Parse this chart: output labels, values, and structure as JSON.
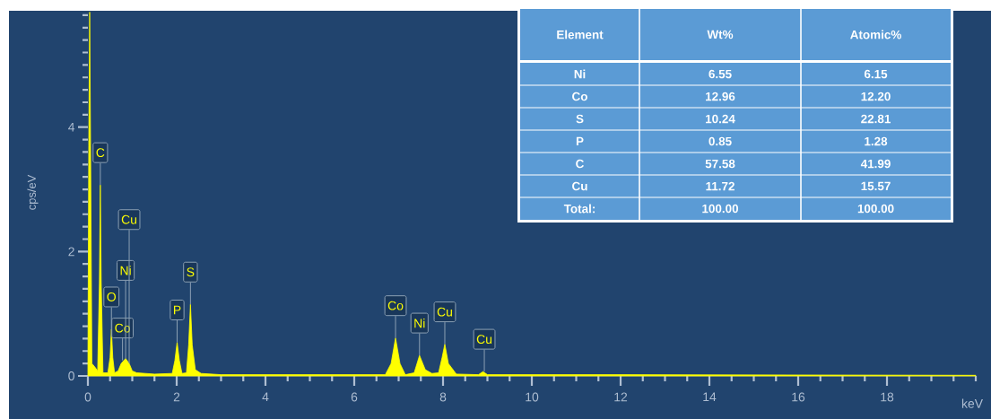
{
  "chart_data": [
    {
      "type": "area",
      "xlabel": "keV",
      "ylabel": "cps/eV",
      "xlim": [
        0,
        20
      ],
      "ylim": [
        0,
        5.9
      ],
      "xticks": [
        0,
        {
          "value": 0.5,
          "label": null
        },
        {
          "value": 1,
          "label": null
        },
        {
          "value": 1.5,
          "label": null
        },
        2,
        {
          "value": 2.5,
          "label": null
        },
        {
          "value": 3,
          "label": null
        },
        {
          "value": 3.5,
          "label": null
        },
        4,
        {
          "value": 4.5,
          "label": null
        },
        {
          "value": 5,
          "label": null
        },
        {
          "value": 5.5,
          "label": null
        },
        6,
        {
          "value": 6.5,
          "label": null
        },
        {
          "value": 7,
          "label": null
        },
        {
          "value": 7.5,
          "label": null
        },
        8,
        {
          "value": 8.5,
          "label": null
        },
        {
          "value": 9,
          "label": null
        },
        {
          "value": 9.5,
          "label": null
        },
        10,
        {
          "value": 10.5,
          "label": null
        },
        {
          "value": 11,
          "label": null
        },
        {
          "value": 11.5,
          "label": null
        },
        12,
        {
          "value": 12.5,
          "label": null
        },
        {
          "value": 13,
          "label": null
        },
        {
          "value": 13.5,
          "label": null
        },
        14,
        {
          "value": 14.5,
          "label": null
        },
        {
          "value": 15,
          "label": null
        },
        {
          "value": 15.5,
          "label": null
        },
        16,
        {
          "value": 16.5,
          "label": null
        },
        {
          "value": 17,
          "label": null
        },
        {
          "value": 17.5,
          "label": null
        },
        18,
        {
          "value": 18.5,
          "label": null
        },
        {
          "value": 19,
          "label": null
        },
        {
          "value": 19.5,
          "label": null
        },
        {
          "value": 20,
          "label": null
        }
      ],
      "yticks": [
        0,
        {
          "value": 0.2,
          "label": null
        },
        {
          "value": 0.4,
          "label": null
        },
        {
          "value": 0.6,
          "label": null
        },
        {
          "value": 0.8,
          "label": null
        },
        {
          "value": 1,
          "label": null
        },
        {
          "value": 1.2,
          "label": null
        },
        {
          "value": 1.4,
          "label": null
        },
        {
          "value": 1.6,
          "label": null
        },
        {
          "value": 1.8,
          "label": null
        },
        2,
        {
          "value": 2.2,
          "label": null
        },
        {
          "value": 2.4,
          "label": null
        },
        {
          "value": 2.6,
          "label": null
        },
        {
          "value": 2.8,
          "label": null
        },
        {
          "value": 3,
          "label": null
        },
        {
          "value": 3.2,
          "label": null
        },
        {
          "value": 3.4,
          "label": null
        },
        {
          "value": 3.6,
          "label": null
        },
        {
          "value": 3.8,
          "label": null
        },
        4,
        {
          "value": 4.2,
          "label": null
        },
        {
          "value": 4.4,
          "label": null
        },
        {
          "value": 4.6,
          "label": null
        },
        {
          "value": 4.8,
          "label": null
        },
        {
          "value": 5,
          "label": null
        },
        {
          "value": 5.2,
          "label": null
        },
        {
          "value": 5.4,
          "label": null
        },
        {
          "value": 5.6,
          "label": null
        },
        {
          "value": 5.8,
          "label": null
        }
      ],
      "series": [
        {
          "color": "#ffff00",
          "x": [
            0,
            0.02,
            0.04,
            0.06,
            0.09,
            0.15,
            0.22,
            0.26,
            0.28,
            0.3,
            0.34,
            0.45,
            0.5,
            0.53,
            0.56,
            0.6,
            0.68,
            0.75,
            0.85,
            0.93,
            1.0,
            1.1,
            1.5,
            1.9,
            1.96,
            2.01,
            2.06,
            2.12,
            2.22,
            2.27,
            2.31,
            2.35,
            2.42,
            2.55,
            3,
            5,
            6.7,
            6.83,
            6.93,
            7.03,
            7.15,
            7.35,
            7.47,
            7.6,
            7.75,
            7.9,
            7.98,
            8.04,
            8.12,
            8.3,
            8.8,
            8.9,
            9.0,
            12,
            20
          ],
          "values": [
            0.05,
            3.7,
            5.85,
            3.7,
            0.2,
            0.15,
            0.08,
            1.5,
            3.07,
            1.5,
            0.05,
            0.05,
            0.3,
            0.75,
            0.3,
            0.05,
            0.08,
            0.2,
            0.28,
            0.2,
            0.08,
            0.05,
            0.03,
            0.04,
            0.25,
            0.54,
            0.25,
            0.04,
            0.05,
            0.5,
            1.15,
            0.5,
            0.1,
            0.04,
            0.02,
            0.02,
            0.02,
            0.2,
            0.61,
            0.2,
            0.02,
            0.05,
            0.33,
            0.1,
            0.04,
            0.05,
            0.3,
            0.51,
            0.2,
            0.03,
            0.02,
            0.07,
            0.02,
            0.02,
            0.01
          ]
        }
      ],
      "annotations": [
        {
          "text": "C",
          "x": 0.28,
          "y": 3.07
        },
        {
          "text": "O",
          "x": 0.53,
          "y": 0.75
        },
        {
          "text": "Co",
          "x": 0.78,
          "y": 0.25
        },
        {
          "text": "Ni",
          "x": 0.85,
          "y": 0.28
        },
        {
          "text": "Cu",
          "x": 0.93,
          "y": 0.2
        },
        {
          "text": "P",
          "x": 2.01,
          "y": 0.54
        },
        {
          "text": "S",
          "x": 2.31,
          "y": 1.15
        },
        {
          "text": "Co",
          "x": 6.93,
          "y": 0.61
        },
        {
          "text": "Ni",
          "x": 7.47,
          "y": 0.33
        },
        {
          "text": "Cu",
          "x": 8.04,
          "y": 0.51
        },
        {
          "text": "Cu",
          "x": 8.93,
          "y": 0.07
        }
      ]
    },
    {
      "type": "other",
      "xlabel": "Element",
      "categories": [
        "Ni",
        "Co",
        "S",
        "P",
        "C",
        "Cu"
      ],
      "series": [
        {
          "name": "Wt%",
          "color": "#5b9bd5",
          "values": [
            6.55,
            12.96,
            10.24,
            0.85,
            57.58,
            11.72
          ],
          "value_labels": [
            "6.55",
            "12.96",
            "10.24",
            "0.85",
            "57.58",
            "11.72"
          ]
        },
        {
          "name": "Atomic%",
          "color": "#5b9bd5",
          "values": [
            6.15,
            12.2,
            22.81,
            1.28,
            41.99,
            15.57
          ],
          "value_labels": [
            "6.15",
            "12.20",
            "22.81",
            "1.28",
            "41.99",
            "15.57"
          ]
        }
      ],
      "annotations": [
        "Total:"
      ],
      "totals": [
        "100.00",
        "100.00"
      ]
    }
  ]
}
